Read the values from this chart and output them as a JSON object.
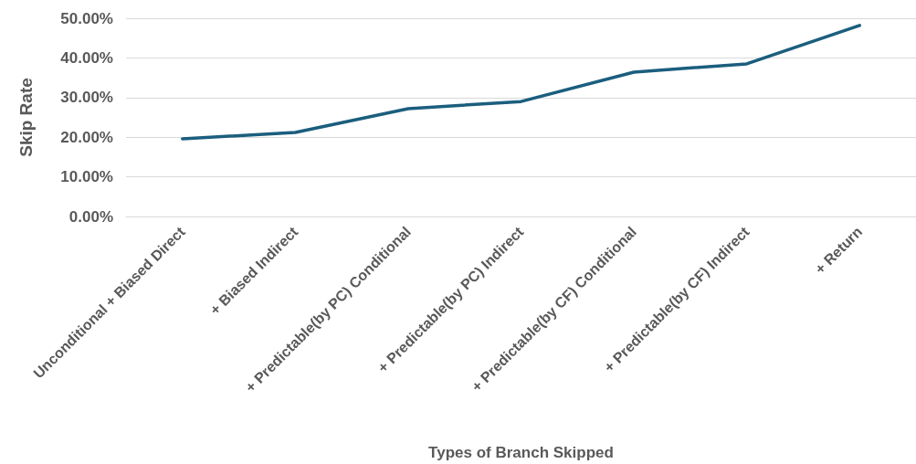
{
  "chart_data": {
    "type": "line",
    "xlabel": "Types of Branch Skipped",
    "ylabel": "Skip Rate",
    "categories": [
      "Unconditional + Biased Direct",
      "+ Biased Indirect",
      "+ Predictable(by PC) Conditional",
      "+ Predictable(by PC) Indirect",
      "+ Predictable(by CF) Conditional",
      "+ Predictable(by CF) Indirect",
      "+ Return"
    ],
    "series": [
      {
        "color": "#1b5e7e",
        "values": [
          19.6,
          21.2,
          27.2,
          29.0,
          36.4,
          38.5,
          48.2
        ]
      }
    ],
    "ylim": [
      0,
      50
    ],
    "yticks": [
      {
        "value": 0,
        "label": "0.00%"
      },
      {
        "value": 10,
        "label": "10.00%"
      },
      {
        "value": 20,
        "label": "20.00%"
      },
      {
        "value": 30,
        "label": "30.00%"
      },
      {
        "value": 40,
        "label": "40.00%"
      },
      {
        "value": 50,
        "label": "50.00%"
      }
    ],
    "grid": "y",
    "marker": "none",
    "line_style": "solid"
  }
}
